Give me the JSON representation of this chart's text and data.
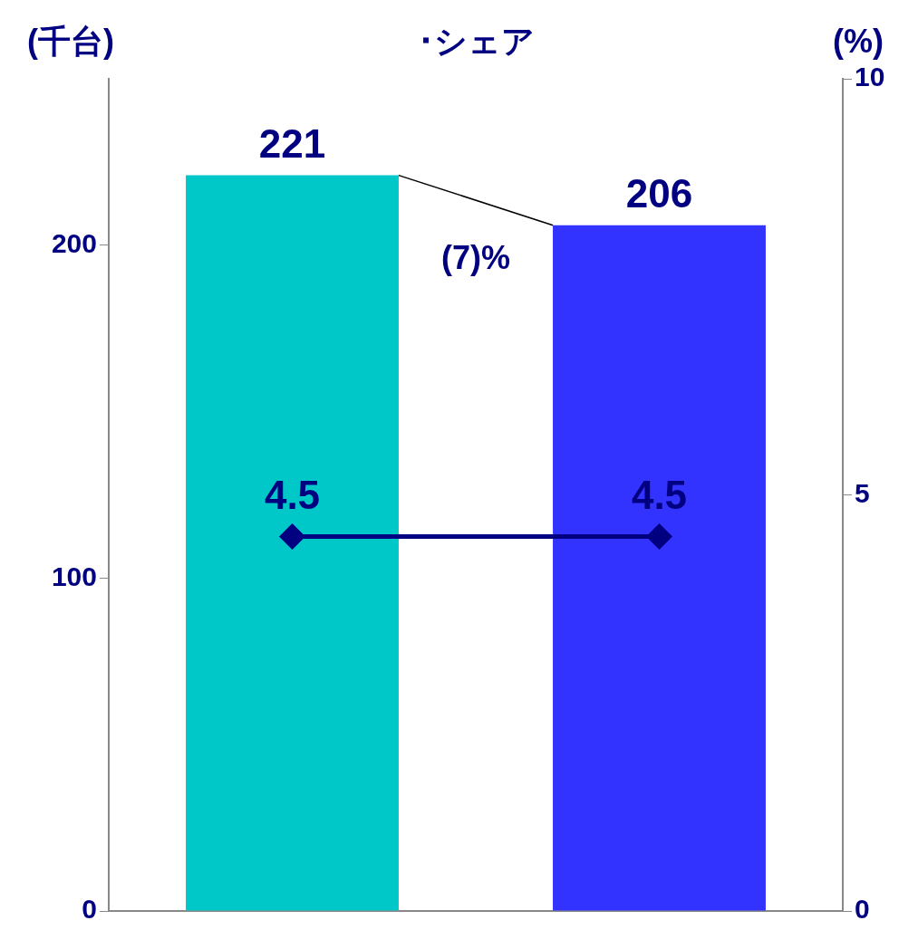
{
  "chart_data": {
    "type": "bar",
    "title": "･シェア",
    "ylabel": "(千台)",
    "y2label": "(%)",
    "categories": [
      null,
      null
    ],
    "series": [
      {
        "colors": [
          "#00c8c8",
          "#3333ff"
        ],
        "values": [
          221,
          206
        ]
      },
      {
        "type": "line",
        "axis": "y2",
        "color": "#000080",
        "values": [
          4.5,
          4.5
        ],
        "marker": "diamond"
      }
    ],
    "ylim": [
      0,
      250
    ],
    "yticks": [
      0,
      100,
      200
    ],
    "y2lim": [
      0,
      10
    ],
    "y2ticks": [
      0,
      5,
      10
    ],
    "annotations": [
      "(7)%"
    ],
    "data_labels": true,
    "grid": false,
    "legend": false
  }
}
